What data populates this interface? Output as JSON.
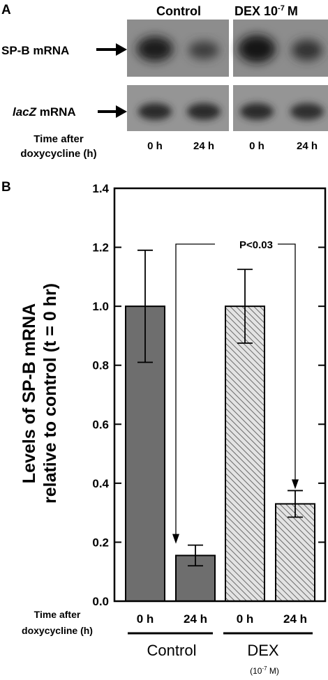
{
  "panel_a": {
    "label": "A",
    "group_control": "Control",
    "group_dex": "DEX 10",
    "group_dex_sup": "-7",
    "group_dex_unit": "M",
    "row1_label": "SP-B mRNA",
    "row2_italic": "lacZ",
    "row2_rest": " mRNA",
    "time_label_1": "Time after",
    "time_label_2": "doxycycline (h)",
    "lane_labels": [
      "0 h",
      "24 h",
      "0 h",
      "24 h"
    ],
    "band_color": "#2b2b2b",
    "background_color": "#8c8c8c"
  },
  "panel_b": {
    "label": "B",
    "ylabel_1": "Levels of SP-B mRNA",
    "ylabel_2": "relative to control (t = 0 hr)",
    "significance": "P<0.03",
    "time_label_1": "Time after",
    "time_label_2": "doxycycline (h)",
    "group_control": "Control",
    "group_dex": "DEX",
    "group_dex_note": "(10",
    "group_dex_note_sup": "-7",
    "group_dex_note_end": " M)"
  },
  "chart_data": {
    "type": "bar",
    "categories": [
      "0 h",
      "24 h",
      "0 h",
      "24 h"
    ],
    "groups": [
      "Control",
      "Control",
      "DEX",
      "DEX"
    ],
    "values": [
      1.0,
      0.155,
      1.0,
      0.33
    ],
    "errors": [
      0.19,
      0.035,
      0.125,
      0.045
    ],
    "ylim": [
      0.0,
      1.4
    ],
    "yticks": [
      "0.0",
      "0.2",
      "0.4",
      "0.6",
      "0.8",
      "1.0",
      "1.2",
      "1.4"
    ],
    "bar_fill_control": "#6e6e6e",
    "bar_fill_dex": "hatched",
    "grid": false
  }
}
